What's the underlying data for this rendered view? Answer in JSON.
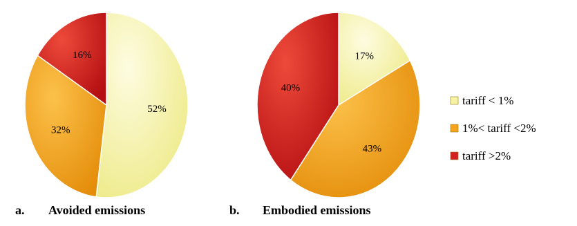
{
  "chart_data": [
    {
      "type": "pie",
      "caption_letter": "a.",
      "caption_text": "Avoided emissions",
      "slices": [
        {
          "category": "tariff < 1%",
          "value": 52,
          "label": "52%"
        },
        {
          "category": "1%< tariff <2%",
          "value": 32,
          "label": "32%"
        },
        {
          "category": "tariff >2%",
          "value": 16,
          "label": "16%"
        }
      ]
    },
    {
      "type": "pie",
      "caption_letter": "b.",
      "caption_text": "Embodied emissions",
      "slices": [
        {
          "category": "tariff < 1%",
          "value": 17,
          "label": "17%"
        },
        {
          "category": "1%< tariff <2%",
          "value": 43,
          "label": "43%"
        },
        {
          "category": "tariff >2%",
          "value": 40,
          "label": "40%"
        }
      ]
    }
  ],
  "legend": {
    "placement": "right",
    "entries": [
      {
        "label": "tariff < 1%",
        "color": "#f6f3a4"
      },
      {
        "label": "1%< tariff <2%",
        "color": "#f5a21c"
      },
      {
        "label": "tariff >2%",
        "color": "#d42020"
      }
    ]
  }
}
